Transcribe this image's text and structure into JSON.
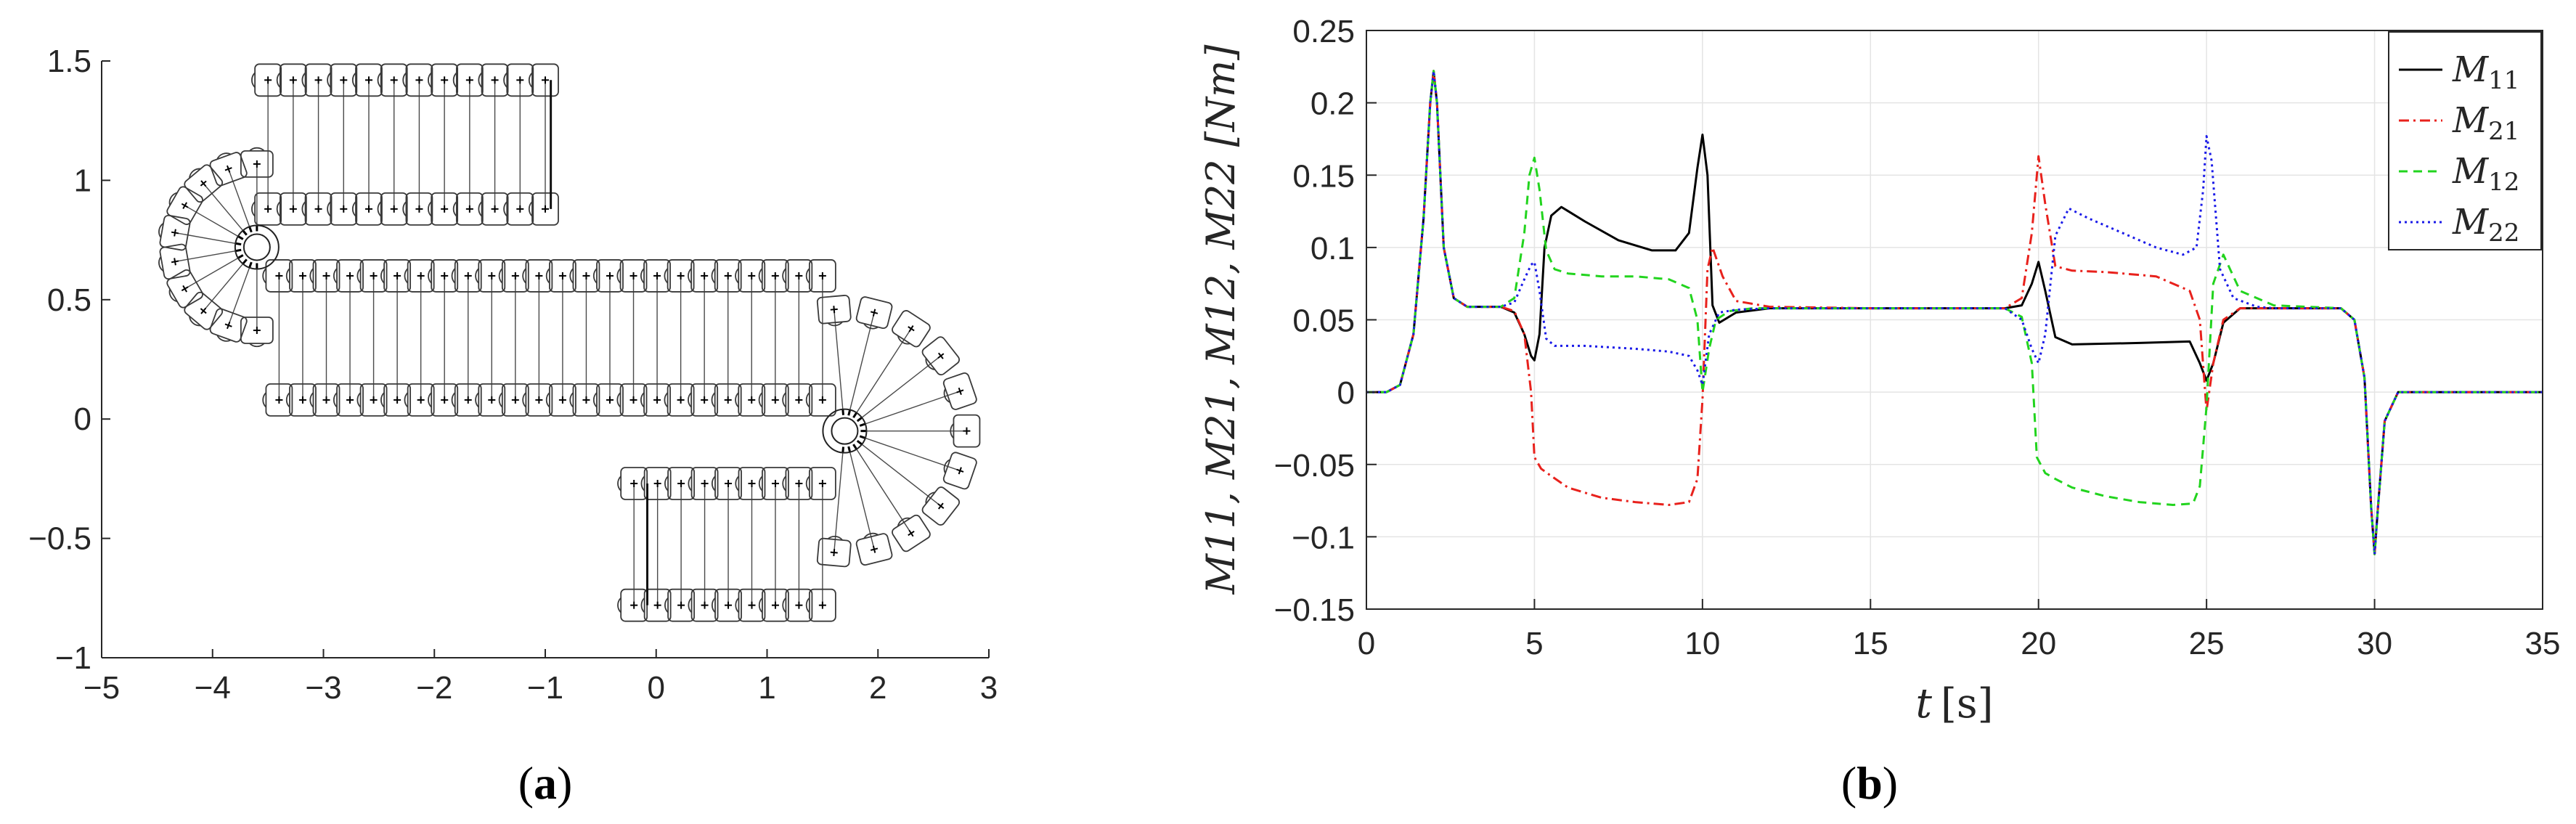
{
  "chart_data": [
    {
      "id": "a",
      "type": "scatter",
      "caption_open": "(",
      "caption_letter": "a",
      "caption_close": ")",
      "title": "",
      "xlabel": "",
      "ylabel": "",
      "xlim": [
        -5,
        3
      ],
      "ylim": [
        -1,
        1.5
      ],
      "xticks": [
        -5,
        -4,
        -3,
        -2,
        -1,
        0,
        1,
        2,
        3
      ],
      "yticks": [
        -1,
        -0.5,
        0,
        0.5,
        1,
        1.5
      ],
      "xtick_labels": [
        "−5",
        "−4",
        "−3",
        "−2",
        "−1",
        "0",
        "1",
        "2",
        "3"
      ],
      "ytick_labels": [
        "−1",
        "−0.5",
        "0",
        "0.5",
        "1",
        "1.5"
      ],
      "grid": false,
      "description_series": [
        {
          "name": "top row 1",
          "from": [
            -3.5,
            1.42
          ],
          "to": [
            -1.0,
            1.42
          ],
          "count": 12
        },
        {
          "name": "top row 2",
          "from": [
            -3.5,
            0.88
          ],
          "to": [
            -1.0,
            0.88
          ],
          "count": 12
        },
        {
          "name": "middle row 1",
          "from": [
            -3.4,
            0.6
          ],
          "to": [
            1.5,
            0.6
          ],
          "count": 24
        },
        {
          "name": "middle row 2",
          "from": [
            -3.4,
            0.08
          ],
          "to": [
            1.5,
            0.08
          ],
          "count": 24
        },
        {
          "name": "bottom row 1",
          "from": [
            -0.2,
            -0.27
          ],
          "to": [
            1.5,
            -0.27
          ],
          "count": 9
        },
        {
          "name": "bottom row 2",
          "from": [
            -0.2,
            -0.78
          ],
          "to": [
            1.5,
            -0.78
          ],
          "count": 9
        },
        {
          "name": "left arc",
          "center": [
            -3.6,
            0.72
          ],
          "radius": 0.75,
          "start_deg": 90,
          "end_deg": 270,
          "count": 10
        },
        {
          "name": "right arc",
          "center": [
            1.7,
            -0.05
          ],
          "radius": 1.1,
          "start_deg": -95,
          "end_deg": 95,
          "count": 11
        }
      ]
    },
    {
      "id": "b",
      "type": "line",
      "caption_open": "(",
      "caption_letter": "b",
      "caption_close": ")",
      "title": "",
      "xlabel_main": "t",
      "xlabel_unit": "[s]",
      "ylabel_text": "M11, M21, M12, M22 [Nm]",
      "xlim": [
        0,
        35
      ],
      "ylim": [
        -0.15,
        0.25
      ],
      "xticks": [
        0,
        5,
        10,
        15,
        20,
        25,
        30,
        35
      ],
      "yticks": [
        -0.15,
        -0.1,
        -0.05,
        0,
        0.05,
        0.1,
        0.15,
        0.2,
        0.25
      ],
      "xtick_labels": [
        "0",
        "5",
        "10",
        "15",
        "20",
        "25",
        "30",
        "35"
      ],
      "ytick_labels": [
        "−0.15",
        "−0.1",
        "−0.05",
        "0",
        "0.05",
        "0.1",
        "0.15",
        "0.2",
        "0.25"
      ],
      "grid": true,
      "legend_position": "top-right",
      "series": [
        {
          "name": "M11",
          "base": "M",
          "sub": "11",
          "color": "#000000",
          "dash": "solid",
          "x": [
            0,
            0.6,
            1.0,
            1.4,
            1.7,
            1.9,
            2.0,
            2.1,
            2.3,
            2.6,
            3.0,
            3.5,
            4.0,
            4.4,
            4.7,
            4.9,
            5.0,
            5.15,
            5.3,
            5.5,
            5.8,
            6.5,
            7.5,
            8.5,
            9.2,
            9.6,
            9.85,
            10.0,
            10.15,
            10.3,
            10.5,
            11.0,
            12.0,
            15.0,
            19.0,
            19.5,
            19.8,
            20.0,
            20.2,
            20.5,
            21.0,
            23.0,
            24.5,
            24.8,
            25.0,
            25.2,
            25.5,
            26.0,
            27.0,
            29.0,
            29.4,
            29.7,
            29.9,
            30.0,
            30.1,
            30.3,
            30.7,
            31.5,
            35
          ],
          "y": [
            0,
            0.0,
            0.005,
            0.04,
            0.12,
            0.2,
            0.222,
            0.2,
            0.1,
            0.065,
            0.059,
            0.059,
            0.059,
            0.055,
            0.04,
            0.025,
            0.022,
            0.04,
            0.1,
            0.122,
            0.128,
            0.118,
            0.105,
            0.098,
            0.098,
            0.11,
            0.155,
            0.178,
            0.15,
            0.06,
            0.048,
            0.055,
            0.058,
            0.058,
            0.058,
            0.06,
            0.075,
            0.09,
            0.07,
            0.038,
            0.033,
            0.034,
            0.035,
            0.02,
            0.008,
            0.02,
            0.048,
            0.058,
            0.058,
            0.058,
            0.05,
            0.01,
            -0.08,
            -0.112,
            -0.08,
            -0.02,
            0.0,
            0.0,
            0.0
          ]
        },
        {
          "name": "M21",
          "base": "M",
          "sub": "21",
          "color": "#e8211c",
          "dash": "dashdot",
          "x": [
            0,
            0.6,
            1.0,
            1.4,
            1.7,
            1.9,
            2.0,
            2.1,
            2.3,
            2.6,
            3.0,
            3.5,
            4.0,
            4.4,
            4.7,
            4.9,
            5.0,
            5.2,
            5.5,
            6.0,
            7.0,
            8.0,
            9.0,
            9.6,
            9.85,
            10.0,
            10.15,
            10.3,
            10.6,
            11.0,
            12.0,
            15.0,
            19.0,
            19.5,
            19.8,
            20.0,
            20.2,
            20.5,
            21.0,
            22.0,
            23.5,
            24.5,
            24.8,
            25.0,
            25.2,
            25.5,
            26.0,
            27.0,
            29.0,
            29.4,
            29.7,
            29.9,
            30.0,
            30.1,
            30.3,
            30.7,
            31.5,
            35
          ],
          "y": [
            0,
            0.0,
            0.005,
            0.04,
            0.12,
            0.2,
            0.222,
            0.2,
            0.1,
            0.065,
            0.059,
            0.059,
            0.059,
            0.056,
            0.04,
            0.0,
            -0.045,
            -0.053,
            -0.058,
            -0.066,
            -0.073,
            -0.076,
            -0.078,
            -0.076,
            -0.06,
            -0.005,
            0.085,
            0.1,
            0.08,
            0.063,
            0.059,
            0.058,
            0.058,
            0.065,
            0.11,
            0.163,
            0.13,
            0.087,
            0.084,
            0.083,
            0.08,
            0.07,
            0.05,
            -0.013,
            0.02,
            0.05,
            0.058,
            0.058,
            0.058,
            0.05,
            0.01,
            -0.08,
            -0.112,
            -0.08,
            -0.02,
            0.0,
            0.0,
            0.0
          ]
        },
        {
          "name": "M12",
          "base": "M",
          "sub": "12",
          "color": "#22d41e",
          "dash": "dashed",
          "x": [
            0,
            0.6,
            1.0,
            1.4,
            1.7,
            1.9,
            2.0,
            2.1,
            2.3,
            2.6,
            3.0,
            3.5,
            4.0,
            4.4,
            4.7,
            4.85,
            5.0,
            5.15,
            5.35,
            5.6,
            6.0,
            7.0,
            8.0,
            9.0,
            9.6,
            9.85,
            10.0,
            10.2,
            10.4,
            10.8,
            11.5,
            12.0,
            15.0,
            19.0,
            19.5,
            19.8,
            19.95,
            20.2,
            20.5,
            21.0,
            22.0,
            23.0,
            24.0,
            24.6,
            24.8,
            25.0,
            25.2,
            25.5,
            26.0,
            27.0,
            29.0,
            29.4,
            29.7,
            29.9,
            30.0,
            30.1,
            30.3,
            30.7,
            31.5,
            35
          ],
          "y": [
            0,
            0.0,
            0.005,
            0.04,
            0.12,
            0.2,
            0.222,
            0.2,
            0.1,
            0.065,
            0.059,
            0.059,
            0.059,
            0.065,
            0.11,
            0.15,
            0.162,
            0.14,
            0.098,
            0.085,
            0.082,
            0.08,
            0.08,
            0.078,
            0.072,
            0.05,
            0.0,
            0.03,
            0.05,
            0.056,
            0.058,
            0.058,
            0.058,
            0.058,
            0.052,
            0.02,
            -0.045,
            -0.056,
            -0.06,
            -0.066,
            -0.072,
            -0.076,
            -0.078,
            -0.077,
            -0.065,
            -0.01,
            0.075,
            0.095,
            0.07,
            0.06,
            0.058,
            0.05,
            0.01,
            -0.08,
            -0.112,
            -0.08,
            -0.02,
            0.0,
            0.0,
            0.0
          ]
        },
        {
          "name": "M22",
          "base": "M",
          "sub": "22",
          "color": "#1a1ae8",
          "dash": "dotted",
          "x": [
            0,
            0.6,
            1.0,
            1.4,
            1.7,
            1.9,
            2.0,
            2.1,
            2.3,
            2.6,
            3.0,
            3.5,
            4.0,
            4.4,
            4.7,
            4.9,
            5.0,
            5.15,
            5.35,
            5.6,
            6.5,
            8.0,
            9.0,
            9.6,
            9.85,
            10.0,
            10.2,
            10.5,
            11.0,
            12.0,
            15.0,
            19.0,
            19.5,
            19.8,
            20.0,
            20.2,
            20.5,
            20.9,
            21.5,
            22.5,
            23.5,
            24.3,
            24.7,
            24.9,
            25.0,
            25.15,
            25.4,
            25.8,
            26.5,
            27.0,
            29.0,
            29.4,
            29.7,
            29.9,
            30.0,
            30.1,
            30.3,
            30.7,
            31.5,
            35
          ],
          "y": [
            0,
            0.0,
            0.005,
            0.04,
            0.12,
            0.2,
            0.222,
            0.2,
            0.1,
            0.065,
            0.059,
            0.059,
            0.059,
            0.062,
            0.078,
            0.088,
            0.09,
            0.07,
            0.037,
            0.032,
            0.032,
            0.03,
            0.028,
            0.025,
            0.015,
            0.005,
            0.04,
            0.055,
            0.057,
            0.058,
            0.058,
            0.058,
            0.05,
            0.03,
            0.02,
            0.04,
            0.108,
            0.127,
            0.12,
            0.11,
            0.1,
            0.095,
            0.1,
            0.14,
            0.177,
            0.16,
            0.085,
            0.065,
            0.059,
            0.058,
            0.058,
            0.05,
            0.01,
            -0.08,
            -0.112,
            -0.08,
            -0.02,
            0.0,
            0.0,
            0.0
          ]
        }
      ]
    }
  ]
}
